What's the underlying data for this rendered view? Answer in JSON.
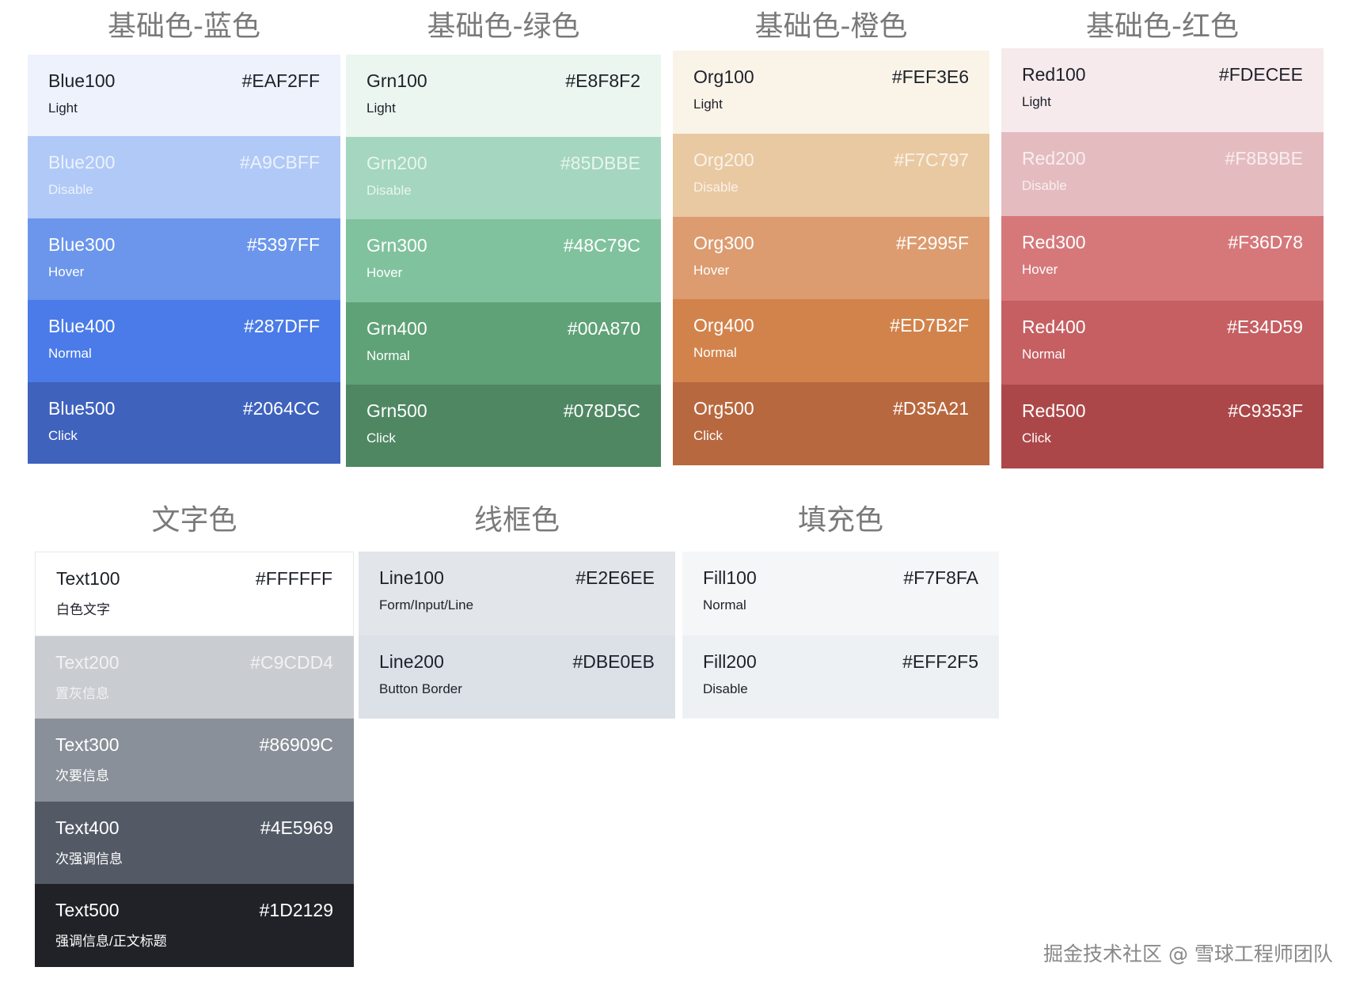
{
  "groups": [
    {
      "title": "基础色-蓝色",
      "swatches": [
        {
          "name": "Blue100",
          "hex": "#EAF2FF",
          "label": "Light",
          "bg": "#EDF2FC",
          "text": "dark"
        },
        {
          "name": "Blue200",
          "hex": "#A9CBFF",
          "label": "Disable",
          "bg": "#B1C9F7",
          "text": "soft"
        },
        {
          "name": "Blue300",
          "hex": "#5397FF",
          "label": "Hover",
          "bg": "#6B96EC",
          "text": "white"
        },
        {
          "name": "Blue400",
          "hex": "#287DFF",
          "label": "Normal",
          "bg": "#4A7BE8",
          "text": "white"
        },
        {
          "name": "Blue500",
          "hex": "#2064CC",
          "label": "Click",
          "bg": "#3F62BD",
          "text": "white"
        }
      ]
    },
    {
      "title": "基础色-绿色",
      "swatches": [
        {
          "name": "Grn100",
          "hex": "#E8F8F2",
          "label": "Light",
          "bg": "#ECF6F0",
          "text": "dark"
        },
        {
          "name": "Grn200",
          "hex": "#85DBBE",
          "label": "Disable",
          "bg": "#A5D6BF",
          "text": "soft"
        },
        {
          "name": "Grn300",
          "hex": "#48C79C",
          "label": "Hover",
          "bg": "#80C29E",
          "text": "white"
        },
        {
          "name": "Grn400",
          "hex": "#00A870",
          "label": "Normal",
          "bg": "#5FA277",
          "text": "white"
        },
        {
          "name": "Grn500",
          "hex": "#078D5C",
          "label": "Click",
          "bg": "#4F8763",
          "text": "white"
        }
      ]
    },
    {
      "title": "基础色-橙色",
      "swatches": [
        {
          "name": "Org100",
          "hex": "#FEF3E6",
          "label": "Light",
          "bg": "#FAF3E8",
          "text": "dark"
        },
        {
          "name": "Org200",
          "hex": "#F7C797",
          "label": "Disable",
          "bg": "#E9C9A2",
          "text": "soft"
        },
        {
          "name": "Org300",
          "hex": "#F2995F",
          "label": "Hover",
          "bg": "#DC9C70",
          "text": "white"
        },
        {
          "name": "Org400",
          "hex": "#ED7B2F",
          "label": "Normal",
          "bg": "#D2834C",
          "text": "white"
        },
        {
          "name": "Org500",
          "hex": "#D35A21",
          "label": "Click",
          "bg": "#B8683F",
          "text": "white"
        }
      ]
    },
    {
      "title": "基础色-红色",
      "swatches": [
        {
          "name": "Red100",
          "hex": "#FDECEE",
          "label": "Light",
          "bg": "#F6EAEC",
          "text": "dark"
        },
        {
          "name": "Red200",
          "hex": "#F8B9BE",
          "label": "Disable",
          "bg": "#E4BCC0",
          "text": "soft"
        },
        {
          "name": "Red300",
          "hex": "#F36D78",
          "label": "Hover",
          "bg": "#D6787A",
          "text": "white"
        },
        {
          "name": "Red400",
          "hex": "#E34D59",
          "label": "Normal",
          "bg": "#C55F62",
          "text": "white"
        },
        {
          "name": "Red500",
          "hex": "#C9353F",
          "label": "Click",
          "bg": "#AC4749",
          "text": "white"
        }
      ]
    },
    {
      "title": "文字色",
      "swatches": [
        {
          "name": "Text100",
          "hex": "#FFFFFF",
          "label": "白色文字",
          "bg": "#FFFFFF",
          "text": "dark"
        },
        {
          "name": "Text200",
          "hex": "#C9CDD4",
          "label": "置灰信息",
          "bg": "#C9CCD1",
          "text": "soft"
        },
        {
          "name": "Text300",
          "hex": "#86909C",
          "label": "次要信息",
          "bg": "#8A9099",
          "text": "white"
        },
        {
          "name": "Text400",
          "hex": "#4E5969",
          "label": "次强调信息",
          "bg": "#535A66",
          "text": "white"
        },
        {
          "name": "Text500",
          "hex": "#1D2129",
          "label": "强调信息/正文标题",
          "bg": "#202227",
          "text": "white"
        }
      ]
    },
    {
      "title": "线框色",
      "swatches": [
        {
          "name": "Line100",
          "hex": "#E2E6EE",
          "label": "Form/Input/Line",
          "bg": "#E2E5EA",
          "text": "dark"
        },
        {
          "name": "Line200",
          "hex": "#DBE0EB",
          "label": "Button Border",
          "bg": "#DCE0E7",
          "text": "dark"
        }
      ]
    },
    {
      "title": "填充色",
      "swatches": [
        {
          "name": "Fill100",
          "hex": "#F7F8FA",
          "label": "Normal",
          "bg": "#F5F6F8",
          "text": "dark"
        },
        {
          "name": "Fill200",
          "hex": "#EFF2F5",
          "label": "Disable",
          "bg": "#EEF1F4",
          "text": "dark"
        }
      ]
    }
  ],
  "watermark": "掘金技术社区 @ 雪球工程师团队"
}
